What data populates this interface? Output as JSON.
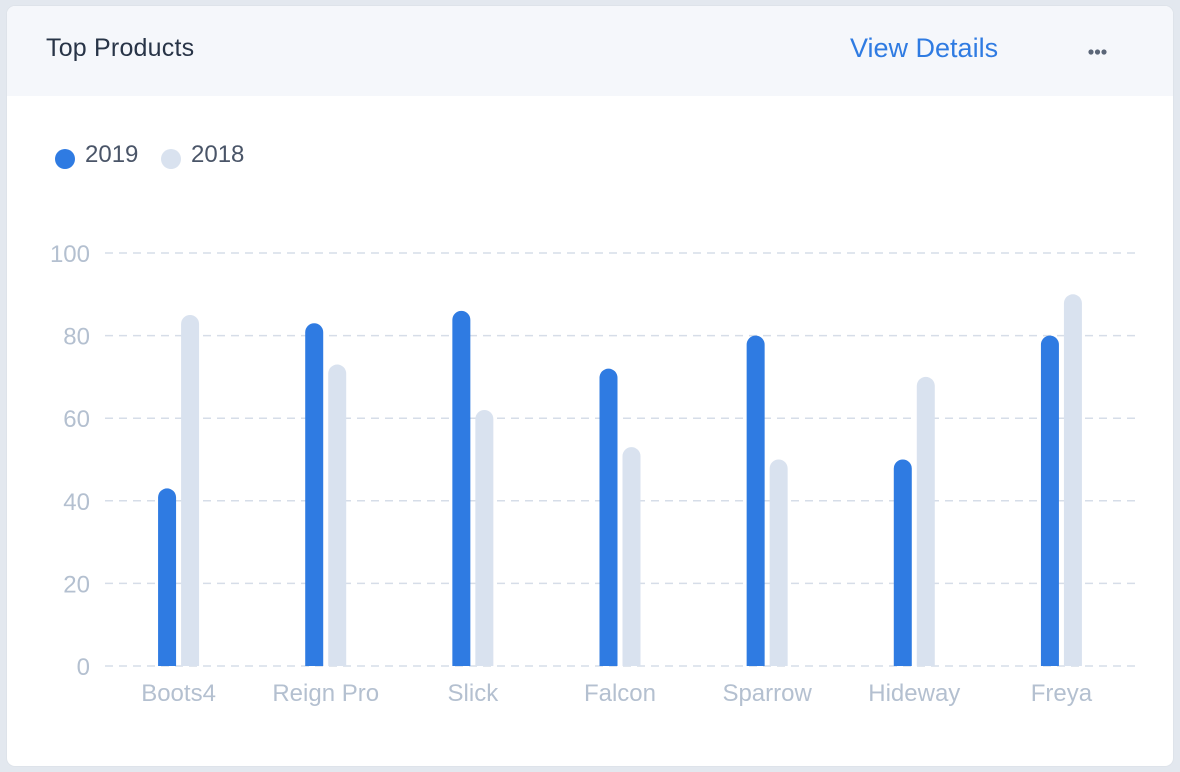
{
  "header": {
    "title": "Top Products",
    "view_details_label": "View Details",
    "more_icon": "more-horizontal-icon"
  },
  "legend": [
    {
      "label": "2019",
      "color": "#2f7be2"
    },
    {
      "label": "2018",
      "color": "#d9e2ef"
    }
  ],
  "chart_data": {
    "type": "bar",
    "categories": [
      "Boots4",
      "Reign Pro",
      "Slick",
      "Falcon",
      "Sparrow",
      "Hideway",
      "Freya"
    ],
    "series": [
      {
        "name": "2019",
        "values": [
          43,
          83,
          86,
          72,
          80,
          50,
          80
        ],
        "color": "#2f7be2"
      },
      {
        "name": "2018",
        "values": [
          85,
          73,
          62,
          53,
          50,
          70,
          90
        ],
        "color": "#d9e2ef"
      }
    ],
    "yticks": [
      0,
      20,
      40,
      60,
      80,
      100
    ],
    "ylim": [
      0,
      100
    ],
    "grid": true,
    "legend_position": "top-left"
  }
}
